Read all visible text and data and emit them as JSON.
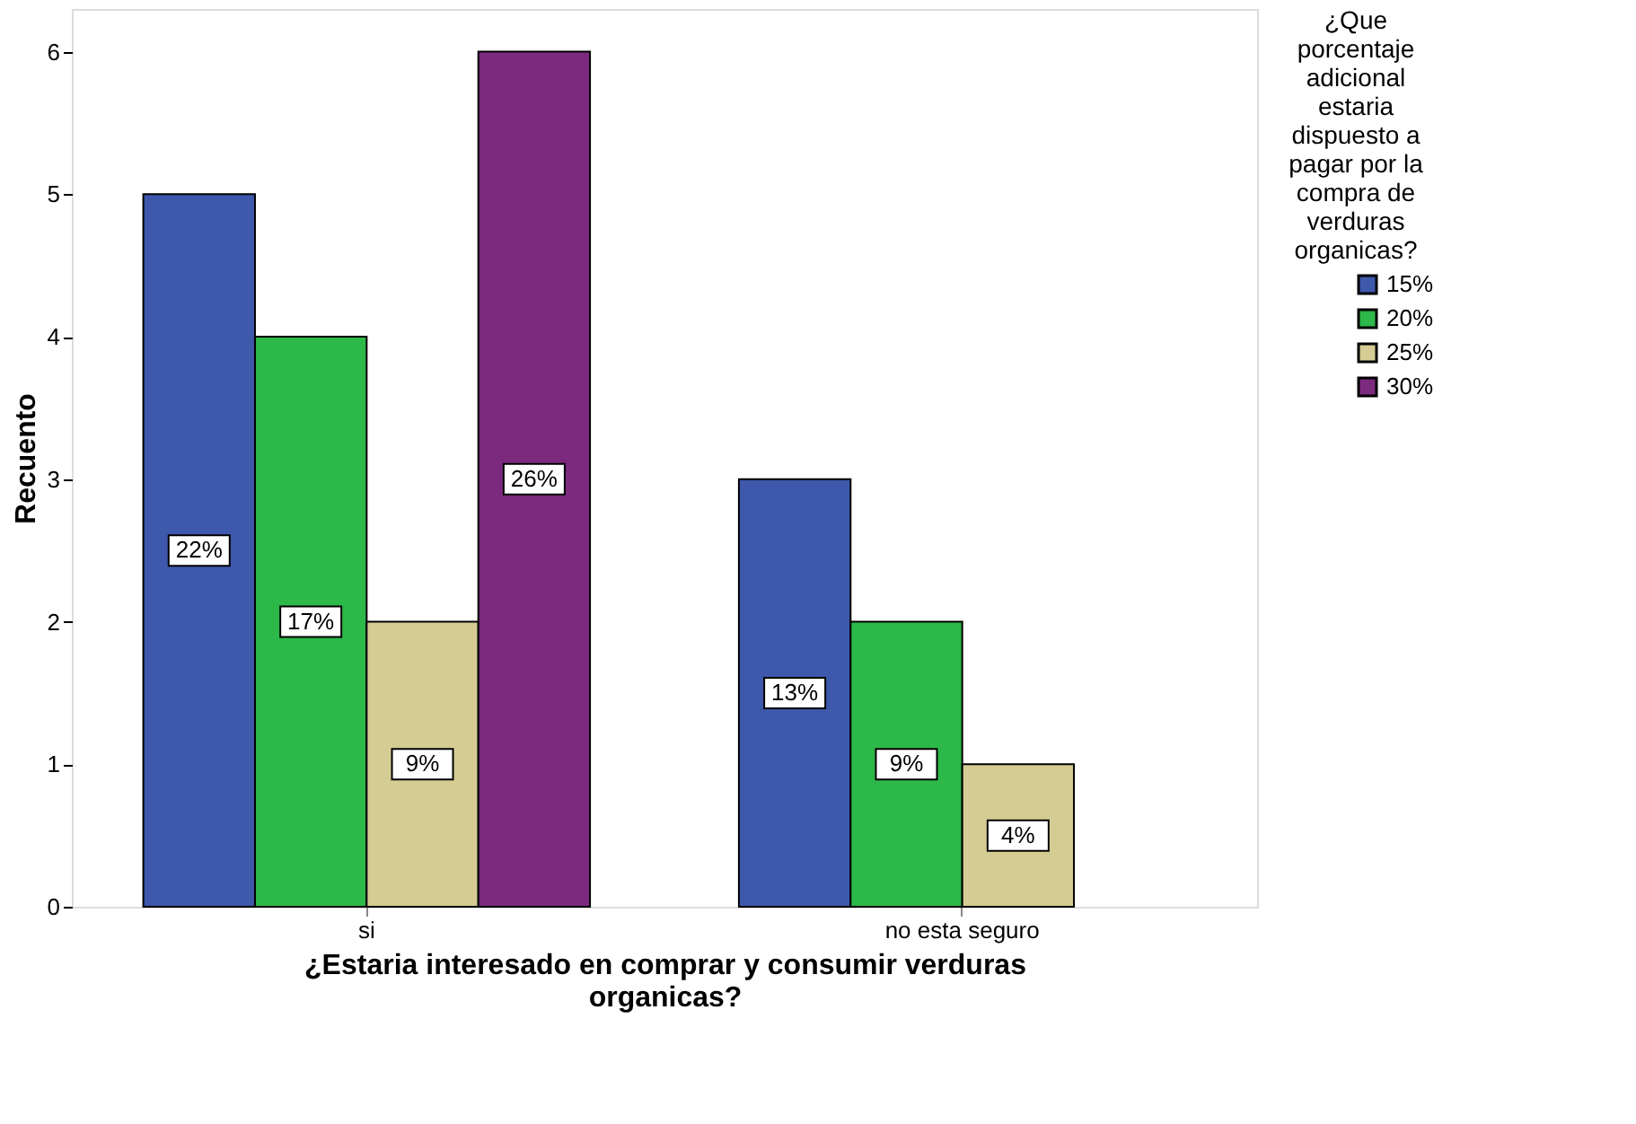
{
  "chart_data": {
    "type": "bar",
    "xlabel": "¿Estaria interesado en comprar y consumir verduras organicas?",
    "ylabel": "Recuento",
    "legend_title": "¿Que porcentaje adicional estaria dispuesto a pagar por la compra de verduras organicas?",
    "categories": [
      "si",
      "no esta seguro"
    ],
    "series": [
      {
        "name": "15%",
        "color": "#3e58ac",
        "values": [
          5,
          3
        ]
      },
      {
        "name": "20%",
        "color": "#2db84a",
        "values": [
          4,
          2
        ]
      },
      {
        "name": "25%",
        "color": "#d4cc93",
        "values": [
          2,
          1
        ]
      },
      {
        "name": "30%",
        "color": "#7b2a7e",
        "values": [
          6,
          null
        ]
      }
    ],
    "annotations": [
      "22%",
      "13%",
      "17%",
      "9%",
      "9%",
      "4%",
      "26%"
    ],
    "ylim": [
      0,
      6.3
    ],
    "yticks": [
      0,
      1,
      2,
      3,
      4,
      5,
      6
    ],
    "grid": false,
    "legend": "top right"
  }
}
